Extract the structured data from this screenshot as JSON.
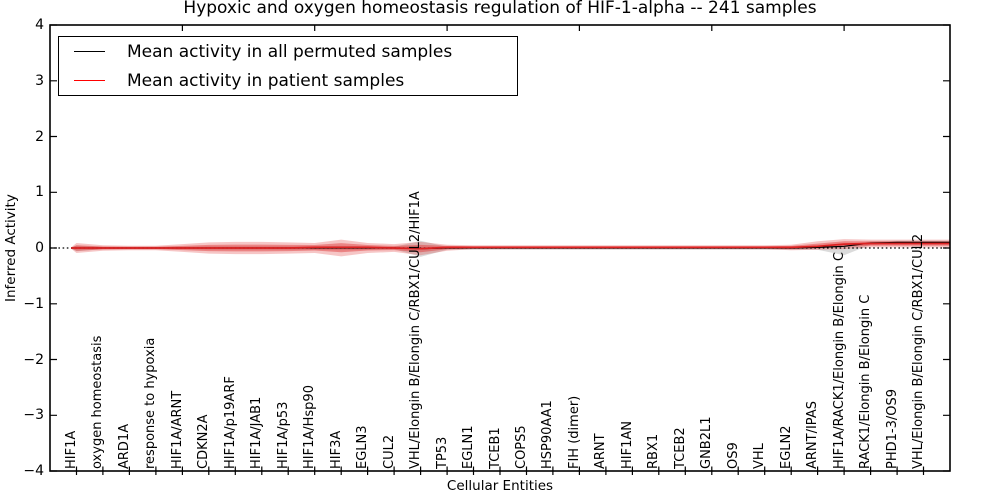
{
  "legend": {
    "items": [
      {
        "label": "Mean activity in all permuted samples",
        "color": "#000000"
      },
      {
        "label": "Mean activity in patient samples",
        "color": "#ff0000"
      }
    ],
    "position": "upper left"
  },
  "chart_data": {
    "type": "line",
    "title": "Hypoxic and oxygen homeostasis regulation of HIF-1-alpha -- 241 samples",
    "xlabel": "Cellular Entities",
    "ylabel": "Inferred Activity",
    "xlim": [
      0,
      34
    ],
    "ylim": [
      -4,
      4
    ],
    "grid": false,
    "yticks": [
      4,
      3,
      2,
      1,
      0,
      -1,
      -2,
      -3,
      -4
    ],
    "ytick_labels": [
      "4",
      "3",
      "2",
      "1",
      "0",
      "−1",
      "−2",
      "−3",
      "−4"
    ],
    "top_axis_ticks": [
      5,
      10,
      15,
      20,
      25,
      30
    ],
    "zero_line_y": 0,
    "categories": [
      "HIF1A",
      "oxygen homeostasis",
      "ARD1A",
      "response to hypoxia",
      "HIF1A/ARNT",
      "CDKN2A",
      "HIF1A/p19ARF",
      "HIF1A/JAB1",
      "HIF1A/p53",
      "HIF1A/Hsp90",
      "HIF3A",
      "EGLN3",
      "CUL2",
      "VHL/Elongin B/Elongin C/RBX1/CUL2/HIF1A",
      "TP53",
      "EGLN1",
      "TCEB1",
      "COPS5",
      "HSP90AA1",
      "FIH (dimer)",
      "ARNT",
      "HIF1AN",
      "RBX1",
      "TCEB2",
      "GNB2L1",
      "OS9",
      "VHL",
      "EGLN2",
      "ARNT/IPAS",
      "HIF1A/RACK1/Elongin B/Elongin C",
      "RACK1/Elongin B/Elongin C",
      "PHD1-3/OS9",
      "VHL/Elongin B/Elongin C/RBX1/CUL2"
    ],
    "series": [
      {
        "name": "Mean activity in all permuted samples",
        "color": "#000000",
        "values": [
          0,
          0,
          0,
          0,
          0,
          0,
          0,
          0,
          0,
          0,
          0,
          0,
          0,
          -0.01,
          0,
          0,
          0,
          0,
          0,
          0,
          0,
          0,
          0,
          0,
          0,
          0,
          0,
          0,
          0.01,
          0.03,
          0.09,
          0.1,
          0.1
        ]
      },
      {
        "name": "Mean activity in patient samples",
        "color": "#dd2222",
        "values": [
          0,
          0,
          0,
          0,
          0,
          0,
          0,
          0,
          0,
          0.01,
          0.01,
          0.01,
          0,
          -0.01,
          0.01,
          0.01,
          0.01,
          0.01,
          0.01,
          0.01,
          0.01,
          0.01,
          0.01,
          0.01,
          0.01,
          0.01,
          0.01,
          0.01,
          0.03,
          0.07,
          0.08,
          0.08,
          0.08
        ]
      }
    ],
    "bands": [
      {
        "name": "permuted-band",
        "color": "#888888",
        "opacity": 0.3,
        "upper": [
          0.04,
          0.02,
          0.02,
          0.02,
          0.02,
          0.03,
          0.03,
          0.03,
          0.03,
          0.03,
          0.04,
          0.03,
          0.02,
          0.13,
          0.02,
          0.02,
          0.02,
          0.02,
          0.02,
          0.02,
          0.02,
          0.02,
          0.02,
          0.02,
          0.02,
          0.02,
          0.02,
          0.02,
          0.03,
          0.05,
          0.12,
          0.13,
          0.13
        ],
        "lower": [
          -0.06,
          -0.02,
          -0.02,
          -0.02,
          -0.02,
          -0.03,
          -0.03,
          -0.03,
          -0.03,
          -0.03,
          -0.04,
          -0.03,
          -0.02,
          -0.16,
          -0.03,
          -0.03,
          -0.03,
          -0.03,
          -0.03,
          -0.03,
          -0.03,
          -0.03,
          -0.03,
          -0.03,
          -0.03,
          -0.03,
          -0.03,
          -0.03,
          -0.03,
          -0.13,
          0.06,
          0.07,
          0.07
        ]
      },
      {
        "name": "patient-band",
        "color": "#dd3333",
        "opacity": 0.28,
        "upper": [
          0.09,
          0.05,
          0.04,
          0.04,
          0.07,
          0.1,
          0.11,
          0.11,
          0.1,
          0.09,
          0.15,
          0.09,
          0.07,
          0.11,
          0.06,
          0.05,
          0.05,
          0.05,
          0.05,
          0.05,
          0.05,
          0.05,
          0.05,
          0.05,
          0.05,
          0.05,
          0.05,
          0.06,
          0.12,
          0.16,
          0.15,
          0.15,
          0.15
        ],
        "lower": [
          -0.09,
          -0.05,
          -0.04,
          -0.04,
          -0.07,
          -0.1,
          -0.11,
          -0.11,
          -0.1,
          -0.09,
          -0.15,
          -0.09,
          -0.07,
          -0.13,
          -0.05,
          -0.02,
          -0.02,
          -0.02,
          -0.02,
          -0.02,
          -0.02,
          -0.02,
          -0.02,
          -0.02,
          -0.02,
          -0.02,
          -0.02,
          -0.04,
          -0.03,
          -0.02,
          0.01,
          0.01,
          0.01
        ]
      },
      {
        "name": "patient-band-inner",
        "color": "#dd3333",
        "opacity": 0.45,
        "scale_of": "patient-band",
        "scale": 0.55
      }
    ]
  }
}
